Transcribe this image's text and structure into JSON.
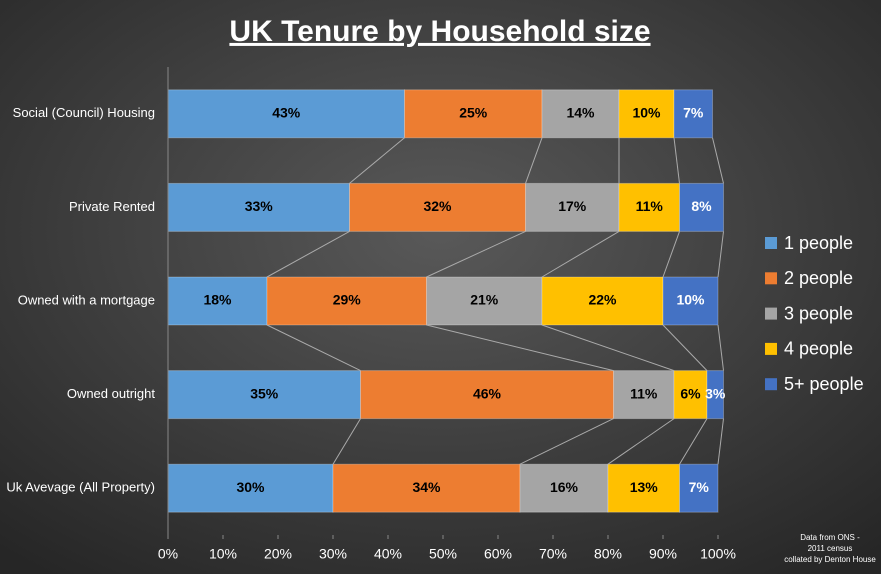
{
  "chart_data": {
    "type": "stacked-bar-horizontal",
    "title": "UK Tenure by Household size",
    "categories": [
      "Social (Council) Housing",
      "Private Rented",
      "Owned with a mortgage",
      "Owned outright",
      "Uk Avevage (All Property)"
    ],
    "series": [
      {
        "name": "1 people",
        "color": "#5b9bd5",
        "values": [
          43,
          33,
          18,
          35,
          30
        ],
        "value_labels": [
          "43%",
          "33%",
          "18%",
          "35%",
          "30%"
        ]
      },
      {
        "name": "2 people",
        "color": "#ed7d31",
        "values": [
          25,
          32,
          29,
          46,
          34
        ],
        "value_labels": [
          "25%",
          "32%",
          "29%",
          "46%",
          "34%"
        ]
      },
      {
        "name": "3 people",
        "color": "#a5a5a5",
        "values": [
          14,
          17,
          21,
          11,
          16
        ],
        "value_labels": [
          "14%",
          "17%",
          "21%",
          "11%",
          "16%"
        ]
      },
      {
        "name": "4 people",
        "color": "#ffc000",
        "values": [
          10,
          11,
          22,
          6,
          13
        ],
        "value_labels": [
          "10%",
          "11%",
          "22%",
          "6%",
          "13%"
        ]
      },
      {
        "name": "5+ people",
        "color": "#4472c4",
        "values": [
          7,
          8,
          10,
          3,
          7
        ],
        "value_labels": [
          "7%",
          "8%",
          "10%",
          "3%",
          "7%"
        ]
      }
    ],
    "xlim": [
      0,
      100
    ],
    "xticks": [
      {
        "value": 0,
        "label": "0%"
      },
      {
        "value": 10,
        "label": "10%"
      },
      {
        "value": 20,
        "label": "20%"
      },
      {
        "value": 30,
        "label": "30%"
      },
      {
        "value": 40,
        "label": "40%"
      },
      {
        "value": 50,
        "label": "50%"
      },
      {
        "value": 60,
        "label": "60%"
      },
      {
        "value": 70,
        "label": "70%"
      },
      {
        "value": 80,
        "label": "80%"
      },
      {
        "value": 90,
        "label": "90%"
      },
      {
        "value": 100,
        "label": "100%"
      }
    ],
    "legend": "right",
    "annotation": [
      "Data from ONS -",
      "2011 census",
      "collated by Denton House"
    ]
  }
}
